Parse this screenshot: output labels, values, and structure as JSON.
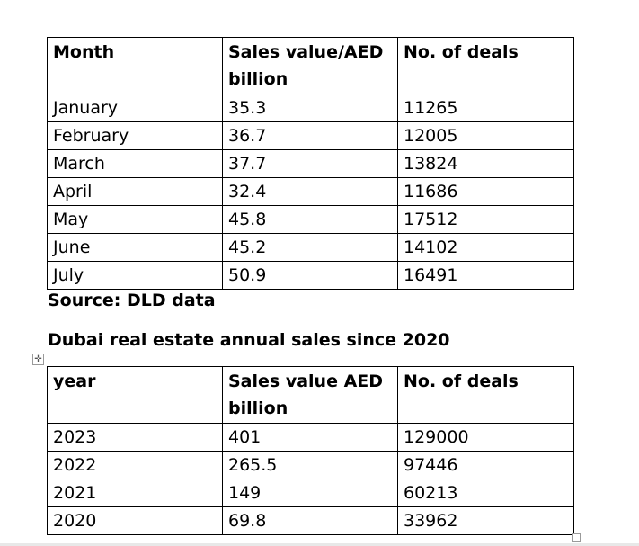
{
  "table1": {
    "headers": [
      "Month",
      "Sales value/AED billion",
      "No. of deals"
    ],
    "rows": [
      [
        "January",
        "35.3",
        "11265"
      ],
      [
        "February",
        "36.7",
        "12005"
      ],
      [
        "March",
        "37.7",
        "13824"
      ],
      [
        "April",
        "32.4",
        "11686"
      ],
      [
        "May",
        "45.8",
        "17512"
      ],
      [
        "June",
        "45.2",
        "14102"
      ],
      [
        "July",
        "50.9",
        "16491"
      ]
    ]
  },
  "source_note": "Source: DLD data",
  "table2": {
    "title": "Dubai real estate annual sales since 2020",
    "headers": [
      "year",
      "Sales value AED billion",
      "No. of deals"
    ],
    "rows": [
      [
        "2023",
        "401",
        "129000"
      ],
      [
        "2022",
        "265.5",
        "97446"
      ],
      [
        "2021",
        "149",
        "60213"
      ],
      [
        "2020",
        "69.8",
        "33962"
      ]
    ]
  },
  "icons": {
    "table_move_handle": "move-arrows-icon",
    "table_resize_handle": "resize-square-icon"
  }
}
